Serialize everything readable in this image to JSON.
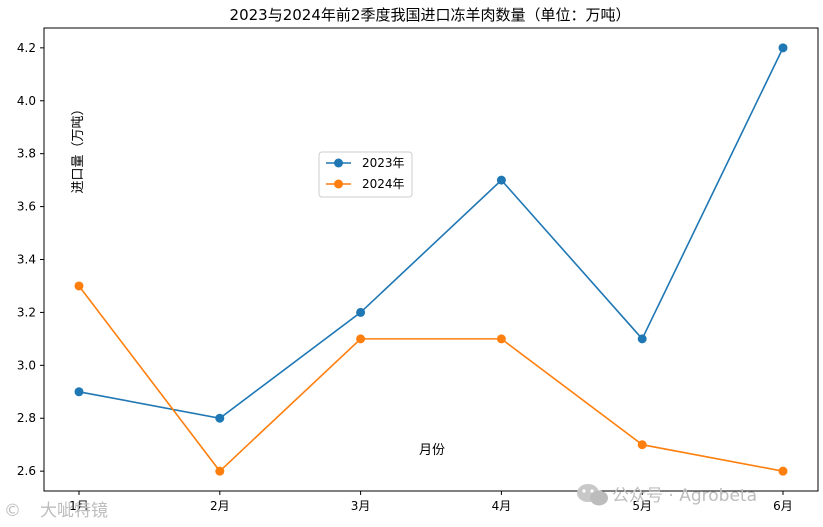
{
  "chart_data": {
    "type": "line",
    "title": "2023与2024年前2季度我国进口冻羊肉数量（单位：万吨）",
    "xlabel": "月份",
    "ylabel": "进口量（万吨）",
    "categories": [
      "1月",
      "2月",
      "3月",
      "4月",
      "5月",
      "6月"
    ],
    "series": [
      {
        "name": "2023年",
        "color": "#1f77b4",
        "values": [
          2.9,
          2.8,
          3.2,
          3.7,
          3.1,
          4.2
        ]
      },
      {
        "name": "2024年",
        "color": "#ff7f0e",
        "values": [
          3.3,
          2.6,
          3.1,
          3.1,
          2.7,
          2.6
        ]
      }
    ],
    "ylim": [
      2.525,
      4.275
    ],
    "yticks": [
      "2.6",
      "2.8",
      "3.0",
      "3.2",
      "3.4",
      "3.6",
      "3.8",
      "4.0",
      "4.2"
    ],
    "grid": false,
    "legend": "center-left"
  },
  "watermarks": {
    "left": "大呲特镜",
    "right": "公众号 · Agrobeta"
  }
}
